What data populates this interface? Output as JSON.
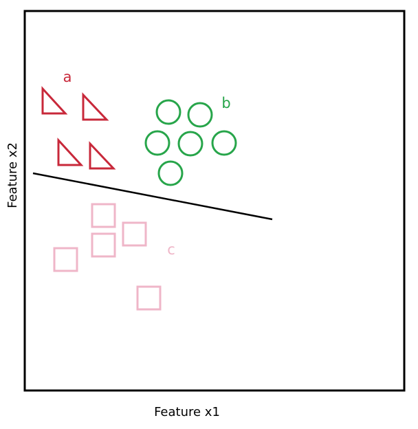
{
  "axes": {
    "x_label": "Feature x1",
    "y_label": "Feature x2"
  },
  "groups": [
    {
      "label": "a",
      "shape": "triangle",
      "color": "#c8283a"
    },
    {
      "label": "b",
      "shape": "circle",
      "color": "#27a54a"
    },
    {
      "label": "c",
      "shape": "square",
      "color": "#efb6c8"
    }
  ],
  "decision_line_color": "#000000"
}
